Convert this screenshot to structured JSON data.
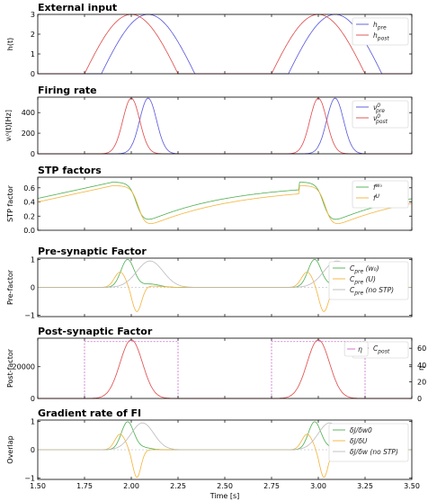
{
  "colors": {
    "pre": "#5555dd",
    "post": "#e04848",
    "green": "#4caf50",
    "orange": "#f3b33a",
    "gray": "#bbbbbb",
    "eta": "#cc66cc",
    "red_label": "#ff0000",
    "purple_axis": "#990099"
  },
  "chart_data": [
    {
      "type": "line",
      "title": "External input",
      "ylabel": "h(t)",
      "xlim": [
        1.5,
        3.5
      ],
      "ylim": [
        0,
        3
      ],
      "yticks": [
        "0",
        "1",
        "2",
        "3"
      ],
      "series": [
        {
          "name": "h_pre",
          "label": "h",
          "sub": "pre",
          "color": "#5555dd",
          "bumps": [
            [
              1.84,
              2.34
            ],
            [
              2.84,
              3.34
            ]
          ],
          "peak": 3
        },
        {
          "name": "h_post",
          "label": "h",
          "sub": "post",
          "color": "#e04848",
          "bumps": [
            [
              1.75,
              2.25
            ],
            [
              2.75,
              3.25
            ]
          ],
          "peak": 3
        }
      ]
    },
    {
      "type": "line",
      "title": "Firing rate",
      "ylabel": "νᵢ⁰(t)[Hz]",
      "xlim": [
        1.5,
        3.5
      ],
      "ylim": [
        0,
        550
      ],
      "yticks": [
        "0",
        "200",
        "400"
      ],
      "series": [
        {
          "name": "nu_pre",
          "label": "ν",
          "sup": "0",
          "sub": "pre",
          "color": "#5555dd",
          "centers": [
            2.09,
            3.09
          ],
          "peak": 540,
          "sigma": 0.045
        },
        {
          "name": "nu_post",
          "label": "ν",
          "sup": "0",
          "sub": "post",
          "color": "#e04848",
          "centers": [
            2.0,
            3.0
          ],
          "peak": 540,
          "sigma": 0.045
        }
      ]
    },
    {
      "type": "line",
      "title": "STP factors",
      "ylabel": "STP factor",
      "xlim": [
        1.5,
        3.5
      ],
      "ylim": [
        0,
        0.75
      ],
      "yticks": [
        "0.0",
        "0.2",
        "0.4",
        "0.6"
      ],
      "series": [
        {
          "name": "f_w",
          "label": "f",
          "sup": "w₀",
          "color": "#4caf50"
        },
        {
          "name": "f_U",
          "label": "f",
          "sup": "U",
          "color": "#f3b33a"
        }
      ]
    },
    {
      "type": "line",
      "title": "Pre-synaptic Factor",
      "ylabel": "Pre-factor",
      "xlim": [
        1.5,
        3.5
      ],
      "ylim": [
        -1.05,
        1.05
      ],
      "yticks": [
        "−1",
        "0",
        "1"
      ],
      "series": [
        {
          "name": "C_pre_w0",
          "label": "C",
          "sub": "pre",
          "suffix": " (w₀)",
          "color": "#4caf50"
        },
        {
          "name": "C_pre_U",
          "label": "C",
          "sub": "pre",
          "suffix": " (U)",
          "color": "#f3b33a"
        },
        {
          "name": "C_pre_noSTP",
          "label": "C",
          "sub": "pre",
          "suffix": " (no STP)",
          "color": "#bbbbbb"
        }
      ]
    },
    {
      "type": "line",
      "title": "Post-synaptic Factor",
      "ylabel": "Post-factor",
      "ylabel_right": "η",
      "xlim": [
        1.5,
        3.5
      ],
      "ylim": [
        0,
        38000
      ],
      "yticks": [
        "0",
        "20000"
      ],
      "yticks_right": [
        "0",
        "20",
        "40",
        "60"
      ],
      "series": [
        {
          "name": "C_post",
          "label": "C",
          "sub": "post",
          "color": "#e04848",
          "centers": [
            2.0,
            3.0
          ],
          "peak": 37000,
          "sigma": 0.06
        },
        {
          "name": "eta",
          "label": "η",
          "color": "#cc66cc",
          "windows": [
            [
              1.75,
              2.25
            ],
            [
              2.75,
              3.25
            ]
          ],
          "level": 68
        }
      ]
    },
    {
      "type": "line",
      "title": "Gradient rate of FI",
      "ylabel": "Overlap",
      "xlabel": "Time [s]",
      "xlim": [
        1.5,
        3.5
      ],
      "ylim": [
        -1.05,
        1.05
      ],
      "yticks": [
        "−1",
        "0",
        "1"
      ],
      "xticks": [
        "1.50",
        "1.75",
        "2.00",
        "2.25",
        "2.50",
        "2.75",
        "3.00",
        "3.25",
        "3.50"
      ],
      "series": [
        {
          "name": "dJ_dw0",
          "label": "δJ/δw0",
          "color": "#4caf50"
        },
        {
          "name": "dJ_dU",
          "label": "δJ/δU",
          "color": "#f3b33a"
        },
        {
          "name": "dJ_dw_noSTP",
          "label": "δJ/δw (no STP)",
          "color": "#bbbbbb"
        }
      ]
    }
  ]
}
